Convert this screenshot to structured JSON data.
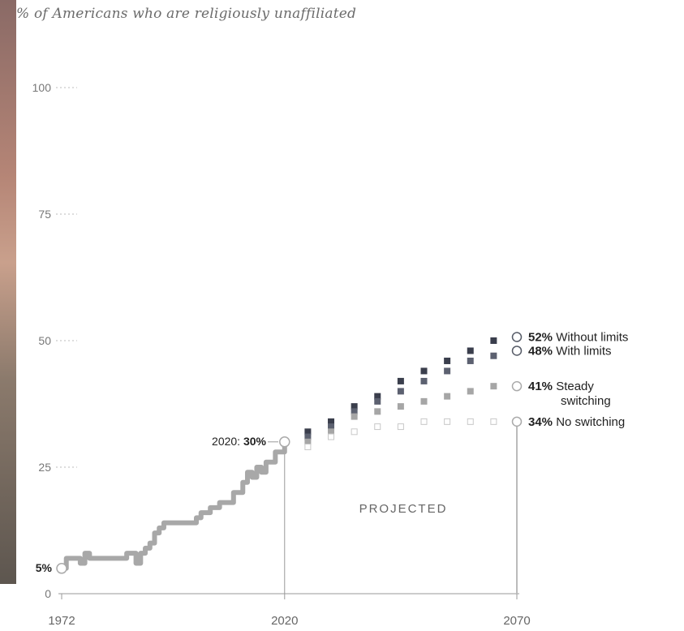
{
  "subtitle": "% of Americans who are religiously unaffiliated",
  "annotations": {
    "start_label": "5%",
    "current_label_prefix": "2020: ",
    "current_label_value": "30%",
    "projected_label": "PROJECTED"
  },
  "colors": {
    "history_line": "#a8a8a8",
    "without_limits": "#3a3e4c",
    "with_limits": "#5c6170",
    "steady_switching": "#a6a6a6",
    "no_switching": "#c8c8c8",
    "axis_text": "#777777"
  },
  "chart_data": {
    "type": "line",
    "ylim": [
      0,
      100
    ],
    "y_ticks": [
      0,
      25,
      50,
      75,
      100
    ],
    "x_ticks": [
      "1972",
      "2020",
      "2070"
    ],
    "history": {
      "x": [
        1972,
        1973,
        1974,
        1975,
        1976,
        1977,
        1978,
        1979,
        1980,
        1981,
        1982,
        1983,
        1984,
        1985,
        1986,
        1987,
        1988,
        1989,
        1990,
        1991,
        1992,
        1993,
        1994,
        1995,
        1996,
        1997,
        1998,
        1999,
        2000,
        2001,
        2002,
        2003,
        2004,
        2005,
        2006,
        2007,
        2008,
        2009,
        2010,
        2011,
        2012,
        2013,
        2014,
        2015,
        2016,
        2017,
        2018,
        2019,
        2020
      ],
      "y": [
        5,
        7,
        7,
        7,
        6,
        8,
        7,
        7,
        7,
        7,
        7,
        7,
        7,
        7,
        8,
        8,
        6,
        8,
        9,
        10,
        12,
        13,
        14,
        14,
        14,
        14,
        14,
        14,
        14,
        15,
        16,
        16,
        17,
        17,
        18,
        18,
        18,
        20,
        20,
        22,
        24,
        23,
        25,
        24,
        26,
        26,
        28,
        28,
        30
      ]
    },
    "projections": [
      {
        "name": "Without limits",
        "label_value": "52%",
        "x": [
          2025,
          2030,
          2035,
          2040,
          2045,
          2050,
          2055,
          2060,
          2065,
          2070
        ],
        "y": [
          32,
          34,
          37,
          39,
          42,
          44,
          46,
          48,
          50,
          52
        ]
      },
      {
        "name": "With limits",
        "label_value": "48%",
        "x": [
          2025,
          2030,
          2035,
          2040,
          2045,
          2050,
          2055,
          2060,
          2065,
          2070
        ],
        "y": [
          31,
          33,
          36,
          38,
          40,
          42,
          44,
          46,
          47,
          48
        ]
      },
      {
        "name": "Steady switching",
        "label_value": "41%",
        "x": [
          2025,
          2030,
          2035,
          2040,
          2045,
          2050,
          2055,
          2060,
          2065,
          2070
        ],
        "y": [
          30,
          32,
          35,
          36,
          37,
          38,
          39,
          40,
          41,
          41
        ]
      },
      {
        "name": "No switching",
        "label_value": "34%",
        "x": [
          2025,
          2030,
          2035,
          2040,
          2045,
          2050,
          2055,
          2060,
          2065,
          2070
        ],
        "y": [
          29,
          31,
          32,
          33,
          33,
          34,
          34,
          34,
          34,
          34
        ]
      }
    ]
  }
}
